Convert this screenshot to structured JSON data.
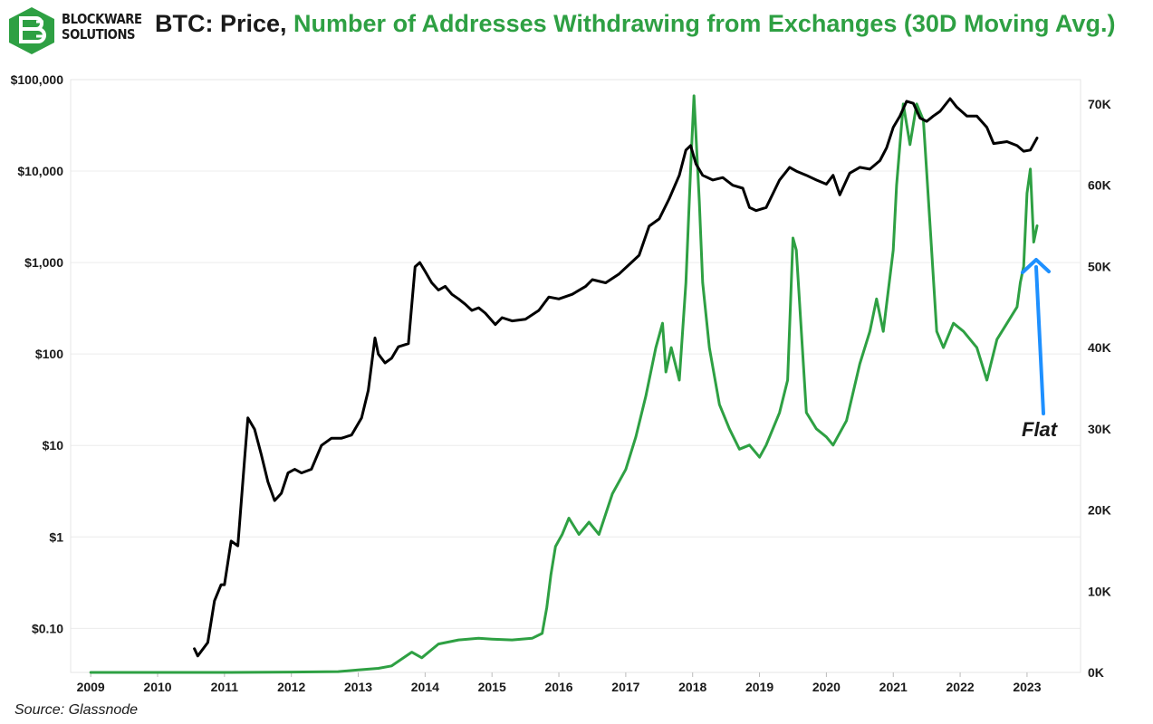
{
  "header": {
    "brand_line1": "BLOCKWARE",
    "brand_line2": "SOLUTIONS",
    "title_part1": "BTC: Price, ",
    "title_part2": "Number of Addresses Withdrawing from Exchanges (30D Moving Avg.)"
  },
  "footer": {
    "source": "Source: Glassnode"
  },
  "annotation": {
    "text": "Flat",
    "arrow_color": "#1e90ff"
  },
  "colors": {
    "price": "#000000",
    "addresses": "#2ea043",
    "title_black": "#1a1a1a",
    "title_green": "#2ea043",
    "logo": "#2ea043"
  },
  "chart_data": {
    "type": "line",
    "title": "BTC: Price, Number of Addresses Withdrawing from Exchanges (30D Moving Avg.)",
    "x_ticks": [
      "2009",
      "2010",
      "2011",
      "2012",
      "2013",
      "2014",
      "2015",
      "2016",
      "2017",
      "2018",
      "2019",
      "2020",
      "2021",
      "2022",
      "2023"
    ],
    "xlim": [
      2008.7,
      2023.8
    ],
    "y_left": {
      "scale": "log",
      "ticks": [
        0.1,
        1,
        10,
        100,
        1000,
        10000,
        100000
      ],
      "tick_labels": [
        "$0.10",
        "$1",
        "$10",
        "$100",
        "$1,000",
        "$10,000",
        "$100,000"
      ],
      "ylim": [
        0.033,
        100000
      ]
    },
    "y_right": {
      "scale": "linear",
      "ticks": [
        0,
        10000,
        20000,
        30000,
        40000,
        50000,
        60000,
        70000
      ],
      "tick_labels": [
        "0K",
        "10K",
        "20K",
        "30K",
        "40K",
        "50K",
        "60K",
        "70K"
      ],
      "ylim": [
        0,
        73000
      ]
    },
    "grid": true,
    "series": [
      {
        "axis": "left",
        "x": [
          2010.55,
          2010.6,
          2010.75,
          2010.85,
          2010.95,
          2011.0,
          2011.1,
          2011.2,
          2011.3,
          2011.35,
          2011.45,
          2011.55,
          2011.65,
          2011.75,
          2011.85,
          2011.95,
          2012.05,
          2012.15,
          2012.3,
          2012.45,
          2012.6,
          2012.75,
          2012.9,
          2013.05,
          2013.15,
          2013.25,
          2013.3,
          2013.4,
          2013.5,
          2013.6,
          2013.75,
          2013.85,
          2013.92,
          2014.0,
          2014.1,
          2014.2,
          2014.3,
          2014.4,
          2014.5,
          2014.6,
          2014.7,
          2014.8,
          2014.9,
          2015.05,
          2015.15,
          2015.3,
          2015.5,
          2015.7,
          2015.85,
          2016.0,
          2016.2,
          2016.4,
          2016.5,
          2016.7,
          2016.9,
          2017.05,
          2017.2,
          2017.35,
          2017.5,
          2017.65,
          2017.8,
          2017.9,
          2017.97,
          2018.05,
          2018.15,
          2018.3,
          2018.45,
          2018.6,
          2018.75,
          2018.85,
          2018.95,
          2019.1,
          2019.3,
          2019.45,
          2019.55,
          2019.7,
          2019.85,
          2020.0,
          2020.1,
          2020.2,
          2020.35,
          2020.5,
          2020.65,
          2020.8,
          2020.9,
          2021.0,
          2021.1,
          2021.2,
          2021.3,
          2021.4,
          2021.5,
          2021.6,
          2021.7,
          2021.85,
          2021.95,
          2022.1,
          2022.25,
          2022.4,
          2022.5,
          2022.7,
          2022.85,
          2022.95,
          2023.05,
          2023.15
        ],
        "values": [
          0.06,
          0.05,
          0.07,
          0.2,
          0.3,
          0.3,
          0.9,
          0.8,
          7,
          20,
          15,
          8,
          4,
          2.5,
          3,
          5,
          5.5,
          5,
          5.5,
          10,
          12,
          12,
          13,
          20,
          40,
          150,
          100,
          80,
          90,
          120,
          130,
          900,
          1000,
          800,
          600,
          500,
          550,
          450,
          400,
          350,
          300,
          320,
          280,
          210,
          250,
          230,
          240,
          300,
          420,
          400,
          450,
          550,
          650,
          600,
          750,
          950,
          1200,
          2500,
          3000,
          5000,
          9000,
          17000,
          19000,
          12000,
          9000,
          8000,
          8500,
          7000,
          6500,
          4000,
          3700,
          4000,
          8000,
          11000,
          10000,
          9000,
          8000,
          7200,
          9000,
          5500,
          9500,
          11000,
          10500,
          13000,
          18000,
          30000,
          40000,
          58000,
          55000,
          38000,
          35000,
          40000,
          45000,
          62000,
          50000,
          40000,
          40000,
          30000,
          20000,
          21000,
          19000,
          16500,
          17000,
          23000
        ]
      },
      {
        "axis": "right",
        "x": [
          2009.0,
          2011.0,
          2012.0,
          2012.7,
          2013.0,
          2013.3,
          2013.5,
          2013.8,
          2013.95,
          2014.2,
          2014.5,
          2014.8,
          2015.0,
          2015.3,
          2015.6,
          2015.75,
          2015.82,
          2015.88,
          2015.95,
          2016.05,
          2016.15,
          2016.3,
          2016.45,
          2016.6,
          2016.8,
          2017.0,
          2017.15,
          2017.3,
          2017.45,
          2017.55,
          2017.6,
          2017.68,
          2017.8,
          2017.9,
          2017.97,
          2018.02,
          2018.1,
          2018.15,
          2018.25,
          2018.4,
          2018.55,
          2018.7,
          2018.85,
          2019.0,
          2019.1,
          2019.3,
          2019.42,
          2019.5,
          2019.55,
          2019.7,
          2019.85,
          2020.0,
          2020.1,
          2020.3,
          2020.5,
          2020.65,
          2020.75,
          2020.85,
          2021.0,
          2021.05,
          2021.15,
          2021.25,
          2021.35,
          2021.45,
          2021.55,
          2021.65,
          2021.75,
          2021.9,
          2022.05,
          2022.25,
          2022.4,
          2022.55,
          2022.7,
          2022.85,
          2022.9,
          2022.95,
          2023.0,
          2023.05,
          2023.1,
          2023.15
        ],
        "values": [
          0,
          0,
          50,
          100,
          300,
          500,
          800,
          2500,
          1800,
          3500,
          4000,
          4200,
          4100,
          4000,
          4200,
          4800,
          8000,
          12000,
          15500,
          17000,
          19000,
          17000,
          18500,
          17000,
          22000,
          25000,
          29000,
          34000,
          40000,
          43000,
          37000,
          40000,
          36000,
          48000,
          62000,
          71000,
          58000,
          48000,
          40000,
          33000,
          30000,
          27500,
          28000,
          26500,
          28000,
          32000,
          36000,
          53500,
          52000,
          32000,
          30000,
          29000,
          28000,
          31000,
          38000,
          42000,
          46000,
          42000,
          52000,
          60000,
          70000,
          65000,
          70000,
          68000,
          55000,
          42000,
          40000,
          43000,
          42000,
          40000,
          36000,
          41000,
          43000,
          45000,
          48000,
          50000,
          59000,
          62000,
          53000,
          55000
        ]
      }
    ]
  }
}
